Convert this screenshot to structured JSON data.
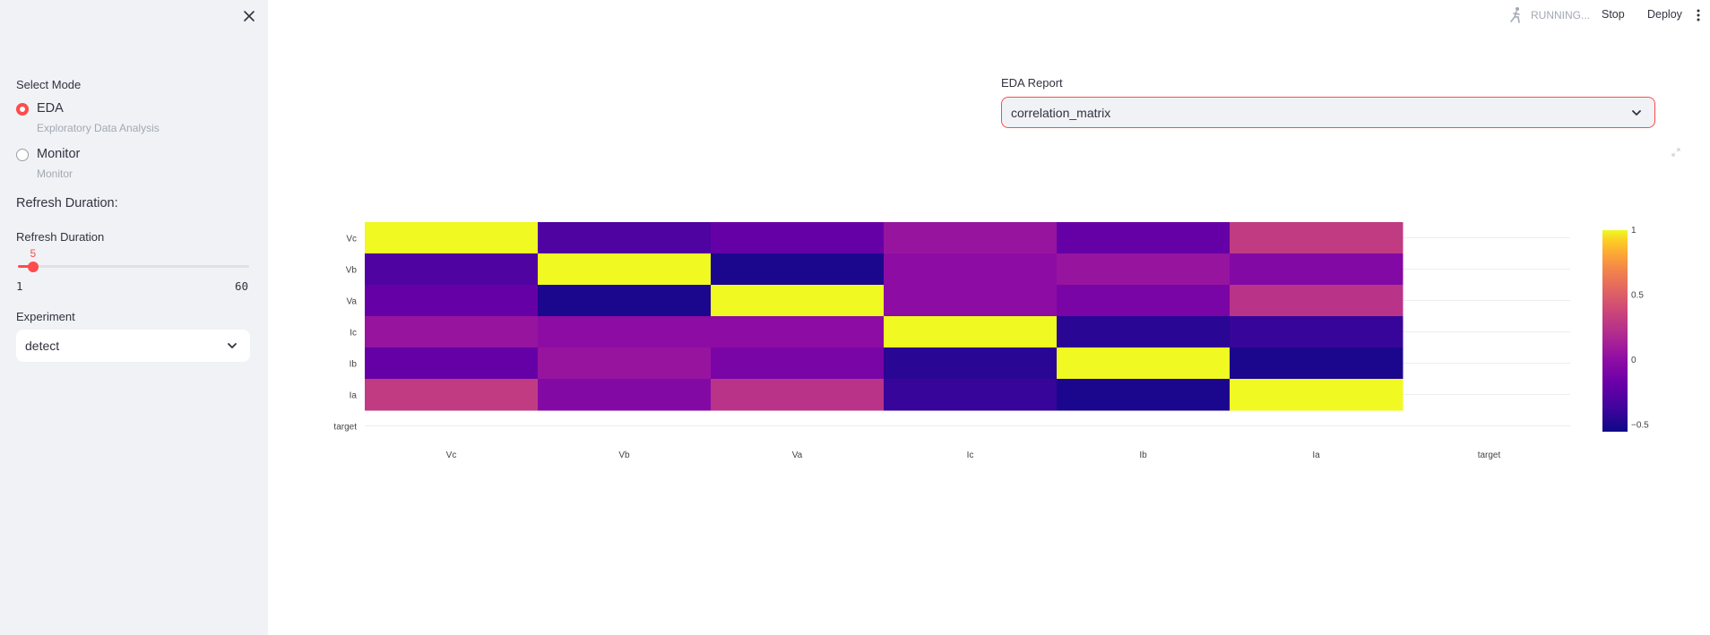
{
  "sidebar": {
    "select_mode_label": "Select Mode",
    "modes": [
      {
        "label": "EDA",
        "caption": "Exploratory Data Analysis",
        "selected": true
      },
      {
        "label": "Monitor",
        "caption": "Monitor",
        "selected": false
      }
    ],
    "refresh_heading": "Refresh Duration:",
    "slider": {
      "label": "Refresh Duration",
      "value": 5,
      "min": 1,
      "max": 60
    },
    "experiment_label": "Experiment",
    "experiment_value": "detect"
  },
  "header": {
    "status": "RUNNING...",
    "stop_label": "Stop",
    "deploy_label": "Deploy"
  },
  "main": {
    "eda_label": "EDA Report",
    "eda_value": "correlation_matrix"
  },
  "colors": {
    "accent": "#ff4b4b",
    "sidebar_bg": "#f0f2f6"
  },
  "chart_data": {
    "type": "heatmap",
    "x": [
      "Vc",
      "Vb",
      "Va",
      "Ic",
      "Ib",
      "Ia",
      "target"
    ],
    "y": [
      "Vc",
      "Vb",
      "Va",
      "Ic",
      "Ib",
      "Ia",
      "target"
    ],
    "z": [
      [
        1.0,
        -0.3,
        -0.2,
        0.05,
        -0.2,
        0.3,
        null
      ],
      [
        -0.3,
        1.0,
        -0.5,
        0.0,
        0.05,
        -0.05,
        null
      ],
      [
        -0.2,
        -0.5,
        1.0,
        0.0,
        -0.1,
        0.25,
        null
      ],
      [
        0.05,
        0.0,
        0.0,
        1.0,
        -0.45,
        -0.4,
        null
      ],
      [
        -0.2,
        0.05,
        -0.1,
        -0.45,
        1.0,
        -0.5,
        null
      ],
      [
        0.3,
        -0.05,
        0.25,
        -0.4,
        -0.5,
        1.0,
        null
      ],
      [
        null,
        null,
        null,
        null,
        null,
        null,
        null
      ]
    ],
    "zlim": [
      -0.55,
      1.0
    ],
    "colorscale": "plasma",
    "colorbar_ticks": [
      "1",
      "0.5",
      "0",
      "−0.5"
    ],
    "colorbar_tick_values": [
      1,
      0.5,
      0,
      -0.5
    ]
  }
}
